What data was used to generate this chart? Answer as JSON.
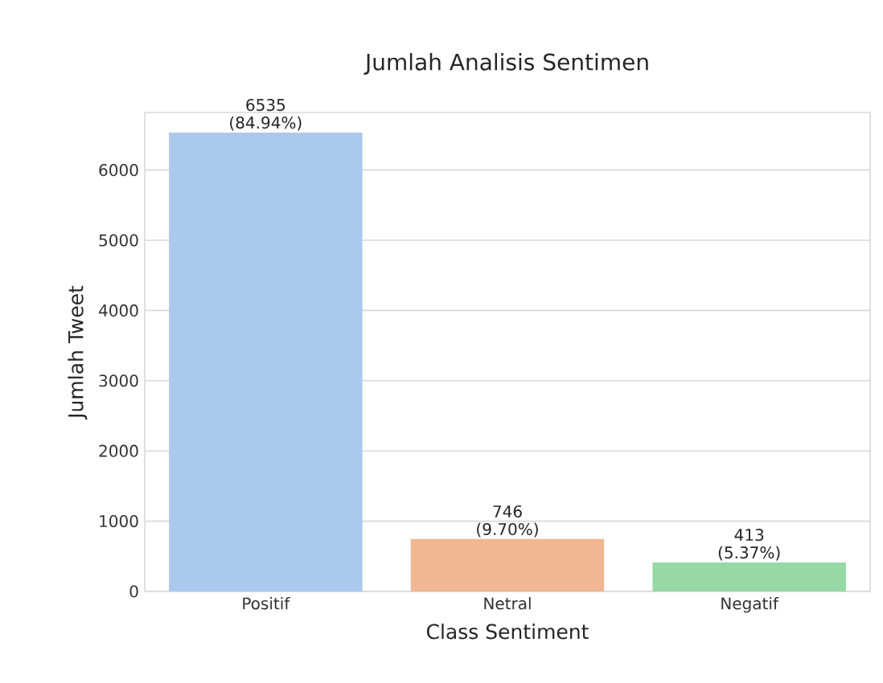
{
  "chart_data": {
    "type": "bar",
    "title": "Jumlah Analisis Sentimen",
    "xlabel": "Class Sentiment",
    "ylabel": "Jumlah Tweet",
    "categories": [
      "Positif",
      "Netral",
      "Negatif"
    ],
    "values": [
      6535,
      746,
      413
    ],
    "colors": [
      "#abc9ec",
      "#f0b792",
      "#96d9a5"
    ],
    "value_labels": [
      "6535 (84.94%)",
      "746 (9.70%)",
      "413 (5.37%)"
    ],
    "ylim": [
      0,
      6820
    ],
    "yticks": [
      0,
      1000,
      2000,
      3000,
      4000,
      5000,
      6000
    ],
    "grid": "y"
  }
}
